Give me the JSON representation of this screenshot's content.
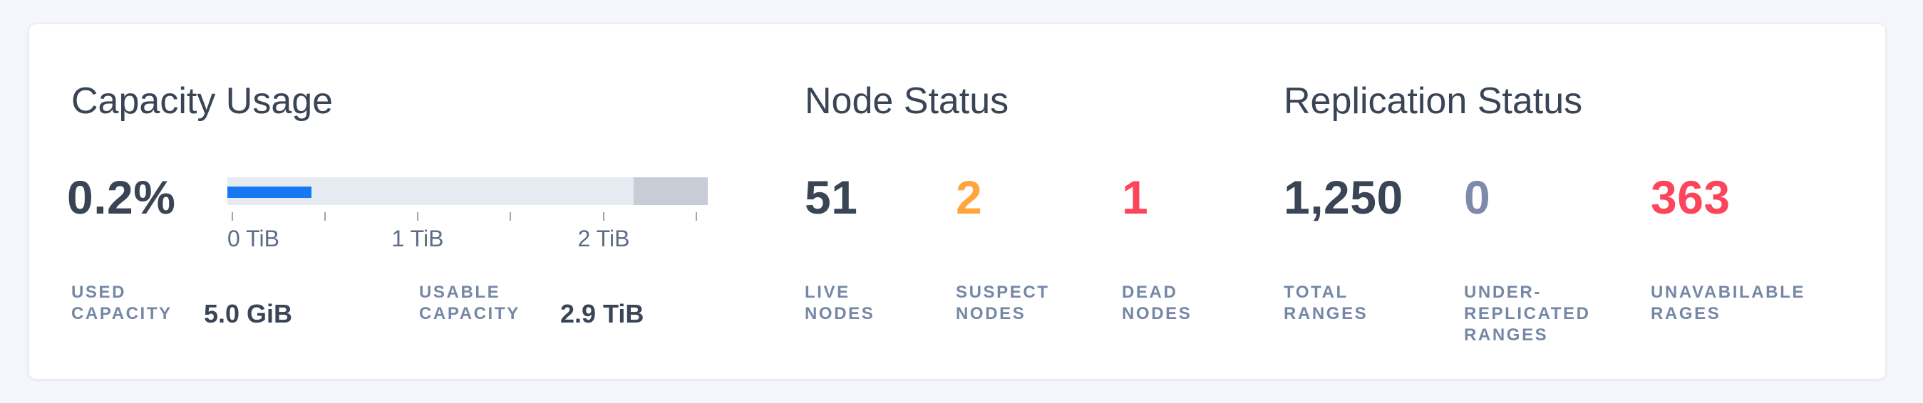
{
  "colors": {
    "page_background": "#f4f6fb",
    "card_background": "#ffffff",
    "primary_text": "#394455",
    "label_text": "#7587a6",
    "bar_used_blue": "#1779f2",
    "bar_track": "#e6eaf1",
    "bar_reserved_gray": "#c7ccd6",
    "warning_orange": "#ffa53b",
    "danger_red": "#fc455a",
    "muted_slate": "#7e89ab"
  },
  "capacity": {
    "title": "Capacity Usage",
    "percent": "0.2%",
    "axis_ticks": [
      "0 TiB",
      "1 TiB",
      "2 TiB"
    ],
    "footer": [
      {
        "label": "USED CAPACITY",
        "value": "5.0 GiB"
      },
      {
        "label": "USABLE CAPACITY",
        "value": "2.9 TiB"
      }
    ]
  },
  "node_status": {
    "title": "Node Status",
    "stats": [
      {
        "value": "51",
        "label": "LIVE NODES",
        "color": "#394455"
      },
      {
        "value": "2",
        "label": "SUSPECT NODES",
        "color": "#ffa53b"
      },
      {
        "value": "1",
        "label": "DEAD NODES",
        "color": "#fc455a"
      }
    ]
  },
  "replication": {
    "title": "Replication Status",
    "stats": [
      {
        "value": "1,250",
        "label": "TOTAL RANGES",
        "color": "#394455"
      },
      {
        "value": "0",
        "label": "UNDER-REPLICATED RANGES",
        "color": "#7e89ab"
      },
      {
        "value": "363",
        "label": "UNAVABILABLE RAGES",
        "color": "#fc455a"
      }
    ]
  },
  "chart_data": {
    "type": "bar",
    "title": "Capacity Usage",
    "percent_used": "0.2%",
    "used_capacity": "5.0 GiB",
    "usable_capacity": "2.9 TiB",
    "x_ticks_labeled": [
      "0 TiB",
      "1 TiB",
      "2 TiB"
    ],
    "x_tick_positions_tib": [
      0,
      0.5,
      1,
      1.5,
      2,
      2.5
    ],
    "x_range_tib": [
      0,
      2.5
    ],
    "used_fill_fraction_visual": 0.175,
    "reserved_segment_fraction_visual": 0.155,
    "legend": "off",
    "grid": "off"
  }
}
